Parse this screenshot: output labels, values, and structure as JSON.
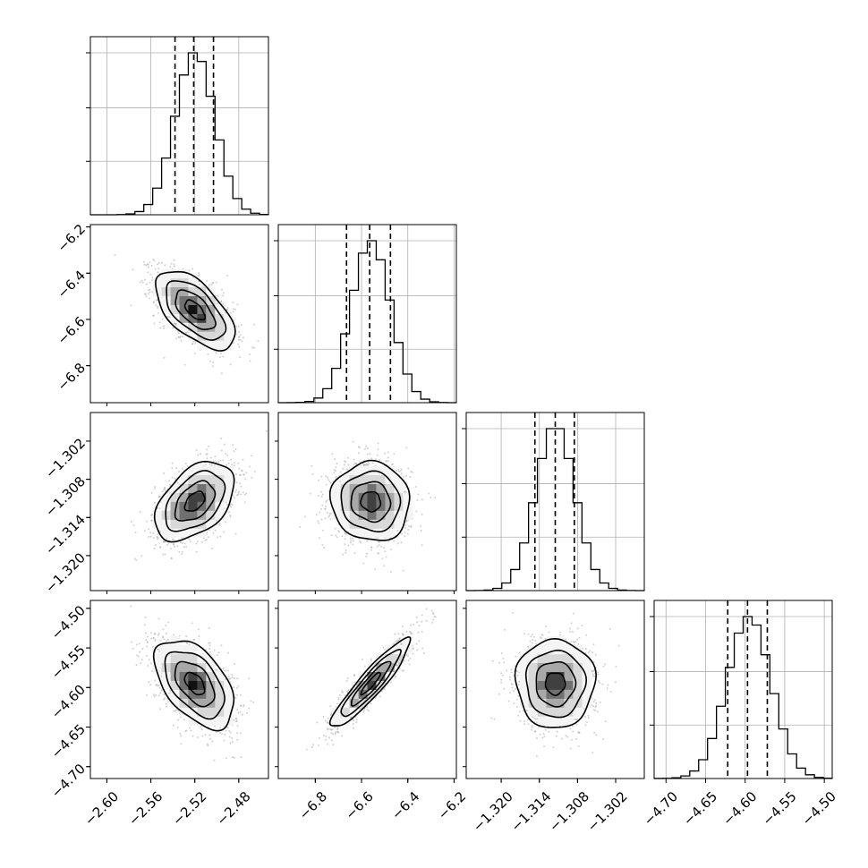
{
  "chart_data": {
    "type": "corner",
    "title": "",
    "parameters": [
      {
        "index": 0,
        "mean": -2.52,
        "std": 0.018,
        "quantiles": [
          -2.538,
          -2.521,
          -2.503
        ],
        "range": [
          -2.615,
          -2.453
        ],
        "ticks": [
          -2.6,
          -2.56,
          -2.52,
          -2.48
        ],
        "tick_labels": [
          "−2.60",
          "−2.56",
          "−2.52",
          "−2.48"
        ]
      },
      {
        "index": 1,
        "mean": -6.56,
        "std": 0.085,
        "quantiles": [
          -6.665,
          -6.565,
          -6.475
        ],
        "range": [
          -6.96,
          -6.19
        ],
        "ticks": [
          -6.8,
          -6.6,
          -6.4,
          -6.2
        ],
        "tick_labels": [
          "−6.8",
          "−6.6",
          "−6.4",
          "−6.2"
        ]
      },
      {
        "index": 2,
        "mean": -1.3115,
        "std": 0.0031,
        "quantiles": [
          -1.3147,
          -1.3115,
          -1.3085
        ],
        "range": [
          -1.3255,
          -1.2975
        ],
        "ticks": [
          -1.32,
          -1.314,
          -1.308,
          -1.302
        ],
        "tick_labels": [
          "−1.320",
          "−1.314",
          "−1.308",
          "−1.302"
        ]
      },
      {
        "index": 3,
        "mean": -4.595,
        "std": 0.028,
        "quantiles": [
          -4.622,
          -4.597,
          -4.572
        ],
        "range": [
          -4.715,
          -4.49
        ],
        "ticks": [
          -4.7,
          -4.65,
          -4.6,
          -4.55,
          -4.5
        ],
        "tick_labels": [
          "−4.70",
          "−4.65",
          "−4.60",
          "−4.55",
          "−4.50"
        ]
      }
    ],
    "correlations": {
      "1-0": -0.6,
      "2-0": 0.45,
      "2-1": -0.05,
      "3-0": -0.5,
      "3-1": 0.92,
      "3-2": 0.0
    },
    "grid": true
  }
}
